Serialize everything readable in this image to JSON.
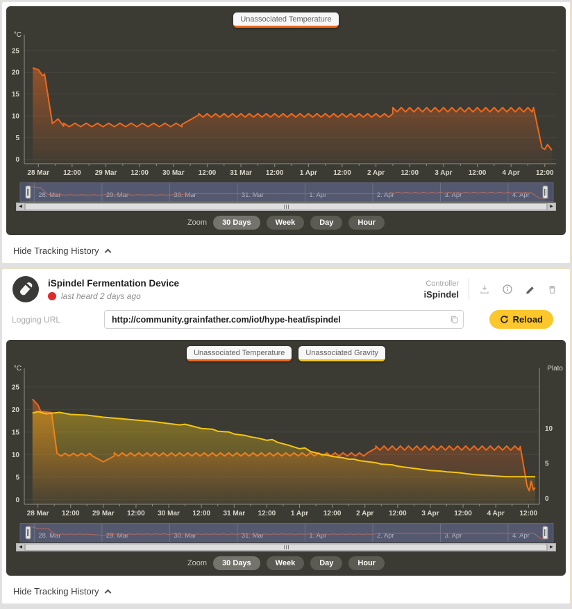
{
  "colors": {
    "temperature": "#ef681d",
    "gravity": "#f3c513",
    "chart_bg": "#3b3b34",
    "nav_bg": "#4b5168",
    "nav_border": "#5d6379",
    "nav_line": "#b06a5e",
    "nav_text": "#aeb3c4",
    "axis_text": "#d9d6c9",
    "grid_line": "#46463f",
    "axis_line": "#8f8f85",
    "reload_yellow": "#fcc62d",
    "status_red": "#df2b2b",
    "card_border": "#f0e3bd"
  },
  "zoom_controls": {
    "label": "Zoom",
    "options": [
      "30 Days",
      "Week",
      "Day",
      "Hour"
    ],
    "selected": "30 Days"
  },
  "hide_tracking_label": "Hide Tracking History",
  "device": {
    "title": "iSpindel Fermentation Device",
    "status_text": "last heard 2 days ago",
    "controller_label": "Controller",
    "controller_value": "iSpindel",
    "logging_url_label": "Logging URL",
    "logging_url_value": "http://community.grainfather.com/iot/hype-heat/ispindel",
    "reload_label": "Reload",
    "action_icons": [
      "download-icon",
      "info-icon",
      "edit-icon",
      "delete-icon"
    ]
  },
  "chart_data": [
    {
      "type": "line",
      "title": "Unassociated Temperature tracking history",
      "legend": [
        {
          "label": "Unassociated Temperature",
          "color": "#ef681d"
        }
      ],
      "y_left": {
        "label": "°C",
        "ticks": [
          0,
          5,
          10,
          15,
          20,
          25
        ],
        "min": -1,
        "max": 28
      },
      "x": {
        "min": -5,
        "max": 184,
        "tick_step": 6,
        "label_step": 12,
        "labels": [
          "28 Mar",
          "12:00",
          "29 Mar",
          "12:00",
          "30 Mar",
          "12:00",
          "31 Mar",
          "12:00",
          "1 Apr",
          "12:00",
          "2 Apr",
          "12:00",
          "3 Apr",
          "12:00",
          "4 Apr",
          "12:00"
        ]
      },
      "series": [
        {
          "name": "Unassociated Temperature",
          "color": "#ef681d",
          "axis": "left",
          "fill_opacity": 0.5,
          "segments": [
            {
              "type": "line",
              "points": [
                [
                  -2,
                  21.0
                ],
                [
                  0,
                  20.6
                ],
                [
                  1.5,
                  19.2
                ],
                [
                  2.2,
                  19.6
                ],
                [
                  5,
                  8.2
                ],
                [
                  7,
                  9.3
                ],
                [
                  9,
                  7.6
                ]
              ]
            },
            {
              "type": "saw",
              "from": 9,
              "to": 51,
              "low": 7.5,
              "high": 8.3,
              "period": 4
            },
            {
              "type": "line",
              "points": [
                [
                  51,
                  8.0
                ],
                [
                  57,
                  10.2
                ]
              ]
            },
            {
              "type": "saw",
              "from": 57,
              "to": 126,
              "low": 9.7,
              "high": 10.5,
              "period": 3
            },
            {
              "type": "saw",
              "from": 126,
              "to": 176,
              "low": 10.9,
              "high": 11.9,
              "period": 3
            },
            {
              "type": "line",
              "points": [
                [
                  176,
                  11.9
                ],
                [
                  179,
                  2.7
                ],
                [
                  180,
                  2.3
                ],
                [
                  181,
                  3.4
                ],
                [
                  182.5,
                  2.1
                ]
              ]
            }
          ]
        }
      ],
      "navigator": {
        "labels": [
          "28. Mar",
          "29. Mar",
          "30. Mar",
          "31. Mar",
          "1. Apr",
          "2. Apr",
          "3. Apr",
          "4. Apr"
        ],
        "day_hours": [
          0,
          24,
          48,
          72,
          96,
          120,
          144,
          168
        ]
      }
    },
    {
      "type": "line",
      "title": "iSpindel temperature and gravity tracking history",
      "legend": [
        {
          "label": "Unassociated Temperature",
          "color": "#ef681d"
        },
        {
          "label": "Unassociated Gravity",
          "color": "#f3c513"
        }
      ],
      "y_left": {
        "label": "°C",
        "ticks": [
          0,
          5,
          10,
          15,
          20,
          25
        ],
        "min": -1,
        "max": 28.5
      },
      "y_right": {
        "label": "Plato",
        "ticks": [
          0,
          5,
          10
        ],
        "c_per_unit": 1.55,
        "c_offset": 0.3
      },
      "x": {
        "min": -5,
        "max": 184,
        "tick_step": 6,
        "label_step": 12,
        "labels": [
          "28 Mar",
          "12:00",
          "29 Mar",
          "12:00",
          "30 Mar",
          "12:00",
          "31 Mar",
          "12:00",
          "1 Apr",
          "12:00",
          "2 Apr",
          "12:00",
          "3 Apr",
          "12:00",
          "4 Apr",
          "12:00"
        ]
      },
      "series": [
        {
          "name": "Unassociated Temperature",
          "color": "#ef681d",
          "axis": "left",
          "fill_opacity": 0.45,
          "segments": [
            {
              "type": "line",
              "points": [
                [
                  -2,
                  22.3
                ],
                [
                  0,
                  21.0
                ],
                [
                  1,
                  19.6
                ],
                [
                  5,
                  19.3
                ],
                [
                  7,
                  10.3
                ]
              ]
            },
            {
              "type": "saw",
              "from": 7,
              "to": 20,
              "low": 9.7,
              "high": 10.3,
              "period": 3
            },
            {
              "type": "line",
              "points": [
                [
                  20,
                  9.7
                ],
                [
                  24,
                  8.4
                ],
                [
                  28,
                  9.7
                ]
              ]
            },
            {
              "type": "saw",
              "from": 28,
              "to": 121,
              "low": 9.7,
              "high": 10.4,
              "period": 3
            },
            {
              "type": "line",
              "points": [
                [
                  121,
                  10.4
                ],
                [
                  124,
                  11.4
                ]
              ]
            },
            {
              "type": "saw",
              "from": 124,
              "to": 177,
              "low": 11.0,
              "high": 11.9,
              "period": 3
            },
            {
              "type": "line",
              "points": [
                [
                  177,
                  11.8
                ],
                [
                  179.5,
                  3.0
                ],
                [
                  180.3,
                  2.0
                ],
                [
                  181,
                  4.1
                ],
                [
                  181.8,
                  2.2
                ],
                [
                  182.5,
                  2.7
                ]
              ]
            }
          ]
        },
        {
          "name": "Unassociated Gravity",
          "color": "#f3c513",
          "axis": "right",
          "fill_opacity": 0.4,
          "segments": [
            {
              "type": "line",
              "points": [
                [
                  -2,
                  12.2
                ],
                [
                  0,
                  12.4
                ],
                [
                  3,
                  12.1
                ],
                [
                  8,
                  12.3
                ],
                [
                  12,
                  12.0
                ],
                [
                  18,
                  11.9
                ],
                [
                  24,
                  11.6
                ],
                [
                  30,
                  11.4
                ],
                [
                  36,
                  11.2
                ],
                [
                  42,
                  11.0
                ],
                [
                  48,
                  10.7
                ],
                [
                  52,
                  10.5
                ],
                [
                  54,
                  10.6
                ],
                [
                  58,
                  10.2
                ],
                [
                  60,
                  10.0
                ],
                [
                  64,
                  9.9
                ],
                [
                  66,
                  9.6
                ],
                [
                  70,
                  9.5
                ],
                [
                  72,
                  9.2
                ],
                [
                  76,
                  9.0
                ],
                [
                  78,
                  8.8
                ],
                [
                  81,
                  8.6
                ],
                [
                  84,
                  8.3
                ],
                [
                  86,
                  8.4
                ],
                [
                  88,
                  8.0
                ],
                [
                  92,
                  7.6
                ],
                [
                  96,
                  7.1
                ],
                [
                  98,
                  7.2
                ],
                [
                  100,
                  6.7
                ],
                [
                  104,
                  6.3
                ],
                [
                  106,
                  6.2
                ],
                [
                  108,
                  6.0
                ],
                [
                  112,
                  5.8
                ],
                [
                  114,
                  5.6
                ],
                [
                  116,
                  5.6
                ],
                [
                  118,
                  5.4
                ],
                [
                  120,
                  5.3
                ],
                [
                  124,
                  5.1
                ],
                [
                  126,
                  4.9
                ],
                [
                  130,
                  4.8
                ],
                [
                  132,
                  4.6
                ],
                [
                  136,
                  4.4
                ],
                [
                  138,
                  4.3
                ],
                [
                  142,
                  4.1
                ],
                [
                  144,
                  4.0
                ],
                [
                  148,
                  3.9
                ],
                [
                  150,
                  3.8
                ],
                [
                  154,
                  3.7
                ],
                [
                  156,
                  3.6
                ],
                [
                  160,
                  3.4
                ],
                [
                  164,
                  3.3
                ],
                [
                  168,
                  3.2
                ],
                [
                  172,
                  3.1
                ],
                [
                  176,
                  3.1
                ],
                [
                  182.5,
                  3.1
                ]
              ]
            }
          ]
        }
      ],
      "navigator": {
        "labels": [
          "28. Mar",
          "29. Mar",
          "30. Mar",
          "31. Mar",
          "1. Apr",
          "2. Apr",
          "3. Apr",
          "4. Apr"
        ],
        "day_hours": [
          0,
          24,
          48,
          72,
          96,
          120,
          144,
          168
        ]
      }
    }
  ]
}
